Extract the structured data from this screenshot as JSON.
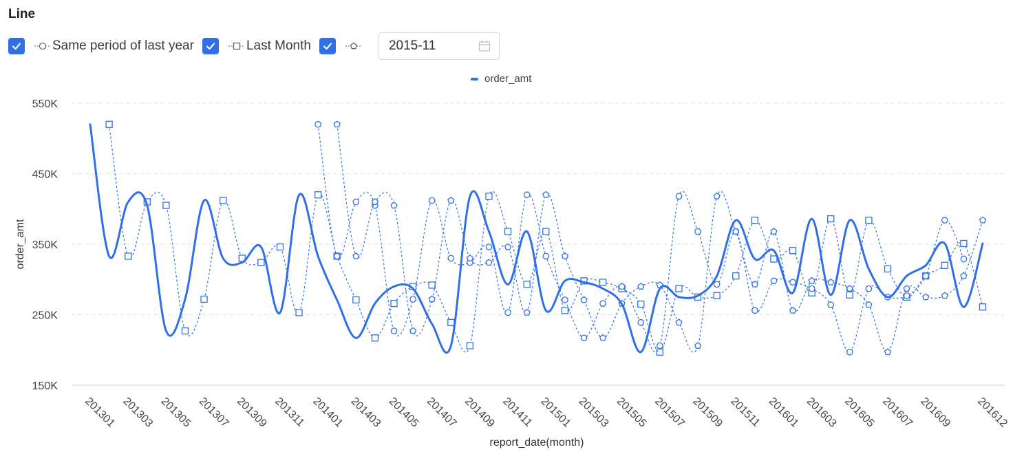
{
  "panel_title": "Line",
  "controls": {
    "options": [
      {
        "label": "Same period of last year",
        "checked": true,
        "marker": "circle-marker-icon"
      },
      {
        "label": "Last Month",
        "checked": true,
        "marker": "square-marker-icon"
      },
      {
        "label": "",
        "checked": true,
        "marker": "pentagon-marker-icon"
      }
    ],
    "date_value": "2015-11",
    "date_icon": "calendar-icon"
  },
  "colors": {
    "accent": "#2f6fe8",
    "grid": "#e0e0e0"
  },
  "chart_data": {
    "type": "line",
    "title": "",
    "xlabel": "report_date(month)",
    "ylabel": "order_amt",
    "ylim": [
      150000,
      550000
    ],
    "y_ticks": [
      "150K",
      "250K",
      "350K",
      "450K",
      "550K"
    ],
    "x_ticks": [
      "201301",
      "201303",
      "201305",
      "201307",
      "201309",
      "201311",
      "201401",
      "201403",
      "201405",
      "201407",
      "201409",
      "201411",
      "201501",
      "201503",
      "201505",
      "201507",
      "201509",
      "201511",
      "201601",
      "201603",
      "201605",
      "201607",
      "201609",
      "201612"
    ],
    "grid": true,
    "legend_position": "top-center",
    "categories": [
      "201301",
      "201302",
      "201303",
      "201304",
      "201305",
      "201306",
      "201307",
      "201308",
      "201309",
      "201310",
      "201311",
      "201312",
      "201401",
      "201402",
      "201403",
      "201404",
      "201405",
      "201406",
      "201407",
      "201408",
      "201409",
      "201410",
      "201411",
      "201412",
      "201501",
      "201502",
      "201503",
      "201504",
      "201505",
      "201506",
      "201507",
      "201508",
      "201509",
      "201510",
      "201511",
      "201512",
      "201601",
      "201602",
      "201603",
      "201604",
      "201605",
      "201606",
      "201607",
      "201608",
      "201609",
      "201610",
      "201611",
      "201612"
    ],
    "series": [
      {
        "name": "order_amt",
        "style": "solid",
        "marker": "none",
        "values": [
          520000,
          333000,
          410000,
          405000,
          227000,
          272000,
          412000,
          330000,
          324000,
          346000,
          253000,
          420000,
          333000,
          271000,
          217000,
          266000,
          290000,
          287000,
          237000,
          206000,
          418000,
          368000,
          293000,
          368000,
          256000,
          298000,
          296000,
          287000,
          265000,
          197000,
          287000,
          275000,
          277000,
          305000,
          384000,
          329000,
          341000,
          281000,
          386000,
          278000,
          384000,
          315000,
          275000,
          305000,
          320000,
          351000,
          261000,
          351000
        ]
      },
      {
        "style": "dashed",
        "marker": "square",
        "values": [
          null,
          520000,
          333000,
          410000,
          405000,
          227000,
          272000,
          412000,
          330000,
          324000,
          346000,
          253000,
          420000,
          333000,
          271000,
          217000,
          266000,
          290000,
          292000,
          239000,
          206000,
          418000,
          368000,
          293000,
          368000,
          256000,
          298000,
          296000,
          287000,
          265000,
          197000,
          287000,
          275000,
          277000,
          305000,
          384000,
          329000,
          341000,
          281000,
          386000,
          278000,
          384000,
          315000,
          275000,
          305000,
          320000,
          351000,
          261000
        ]
      },
      {
        "style": "dashed",
        "marker": "circle",
        "values": [
          null,
          null,
          null,
          null,
          null,
          null,
          null,
          null,
          null,
          null,
          null,
          null,
          520000,
          333000,
          410000,
          405000,
          227000,
          272000,
          412000,
          330000,
          324000,
          346000,
          253000,
          420000,
          333000,
          271000,
          217000,
          266000,
          290000,
          239000,
          206000,
          418000,
          368000,
          293000,
          368000,
          256000,
          298000,
          296000,
          287000,
          264000,
          197000,
          287000,
          275000,
          277000,
          305000,
          384000,
          329000,
          null
        ]
      },
      {
        "style": "dashed",
        "marker": "pentagon",
        "values": [
          null,
          null,
          null,
          null,
          null,
          null,
          null,
          null,
          null,
          null,
          null,
          null,
          null,
          520000,
          333000,
          410000,
          405000,
          227000,
          272000,
          412000,
          330000,
          324000,
          346000,
          253000,
          420000,
          333000,
          271000,
          217000,
          266000,
          290000,
          292000,
          239000,
          206000,
          418000,
          368000,
          293000,
          368000,
          256000,
          298000,
          296000,
          287000,
          264000,
          197000,
          287000,
          275000,
          277000,
          305000,
          384000
        ]
      }
    ]
  }
}
